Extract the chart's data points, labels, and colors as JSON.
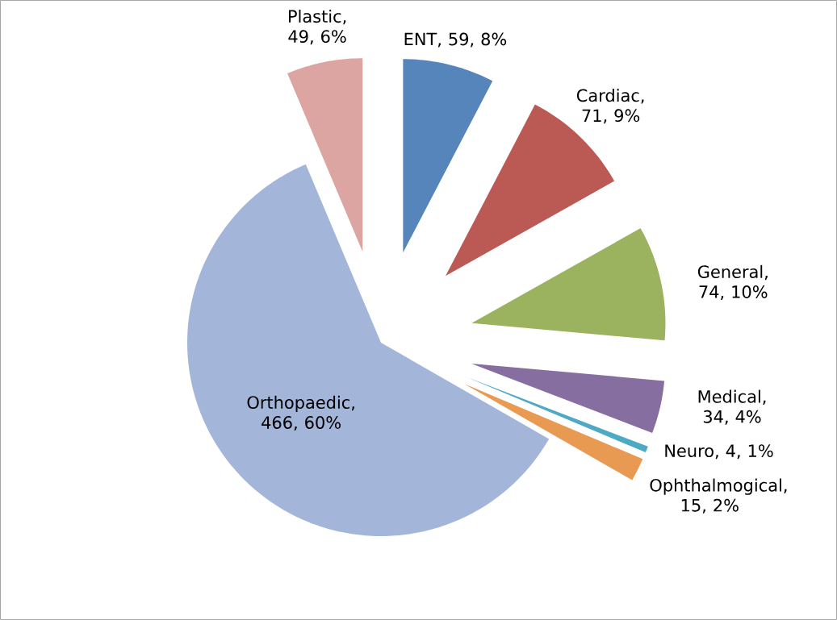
{
  "chart_data": {
    "type": "pie",
    "categories": [
      "ENT",
      "Cardiac",
      "General",
      "Medical",
      "Neuro",
      "Ophthalmogical",
      "Orthopaedic",
      "Plastic"
    ],
    "values": [
      59,
      71,
      74,
      34,
      4,
      15,
      466,
      49
    ],
    "value_labels": [
      ", 59, 8%",
      ", 71, 9%",
      ", 74, 10%",
      ", 34, 4%",
      ", 4, 1%",
      ", 15, 2%",
      ", 466, 60%",
      ", 49, 6%"
    ],
    "colors": [
      "#5585bb",
      "#bb5a55",
      "#9bb25f",
      "#866ea0",
      "#4ea9c4",
      "#e99a52",
      "#a3b6d9",
      "#dca5a2"
    ]
  }
}
